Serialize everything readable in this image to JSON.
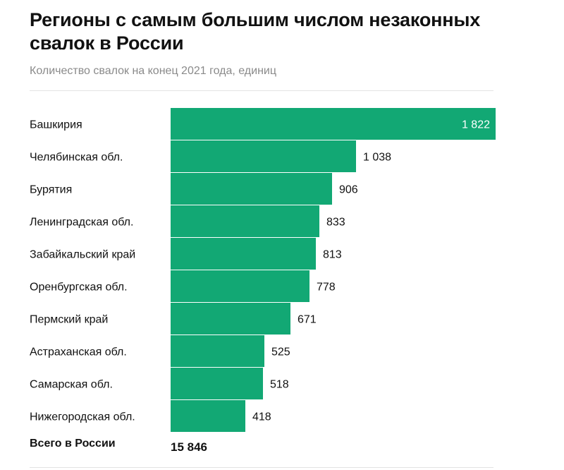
{
  "title": "Регионы с самым большим числом незаконных свалок в России",
  "subtitle": "Количество свалок на конец 2021 года, единиц",
  "colors": {
    "bar": "#12a874"
  },
  "chart_data": {
    "type": "bar",
    "orientation": "horizontal",
    "categories": [
      "Башкирия",
      "Челябинская обл.",
      "Бурятия",
      "Ленинградская обл.",
      "Забайкальский край",
      "Оренбургская обл.",
      "Пермский край",
      "Астраханская обл.",
      "Самарская обл.",
      "Нижегородская обл."
    ],
    "values": [
      1822,
      1038,
      906,
      833,
      813,
      778,
      671,
      525,
      518,
      418
    ],
    "value_labels": [
      "1 822",
      "1 038",
      "906",
      "833",
      "813",
      "778",
      "671",
      "525",
      "518",
      "418"
    ],
    "xlim": [
      0,
      1822
    ],
    "grid": false,
    "legend": "none"
  },
  "total": {
    "label": "Всего в России",
    "value": "15 846"
  }
}
